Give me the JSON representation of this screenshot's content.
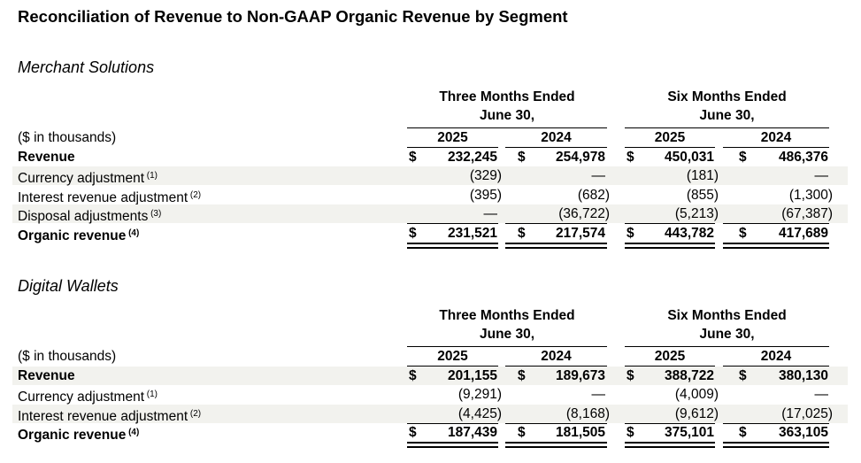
{
  "title": "Reconciliation of Revenue to Non-GAAP Organic Revenue by Segment",
  "sections": [
    {
      "name": "Merchant Solutions",
      "group_headers": [
        [
          "Three Months Ended",
          "June 30,"
        ],
        [
          "Six Months Ended",
          "June 30,"
        ]
      ],
      "unit_label": "($ in thousands)",
      "years": [
        "2025",
        "2024",
        "2025",
        "2024"
      ],
      "rows": [
        {
          "label": "Revenue",
          "note": "",
          "bold": true,
          "shaded": false,
          "dollar": true,
          "values": [
            "232,245",
            "254,978",
            "450,031",
            "486,376"
          ]
        },
        {
          "label": "Currency adjustment",
          "note": "(1)",
          "bold": false,
          "shaded": true,
          "dollar": false,
          "values": [
            "(329)",
            "—",
            "(181)",
            "—"
          ]
        },
        {
          "label": "Interest revenue adjustment",
          "note": "(2)",
          "bold": false,
          "shaded": false,
          "dollar": false,
          "values": [
            "(395)",
            "(682)",
            "(855)",
            "(1,300)"
          ]
        },
        {
          "label": "Disposal adjustments",
          "note": "(3)",
          "bold": false,
          "shaded": true,
          "dollar": false,
          "values": [
            "—",
            "(36,722)",
            "(5,213)",
            "(67,387)"
          ]
        },
        {
          "label": "Organic revenue",
          "note": "(4)",
          "bold": true,
          "shaded": false,
          "dollar": true,
          "total": true,
          "values": [
            "231,521",
            "217,574",
            "443,782",
            "417,689"
          ]
        }
      ]
    },
    {
      "name": "Digital Wallets",
      "group_headers": [
        [
          "Three Months Ended",
          "June 30,"
        ],
        [
          "Six Months Ended",
          "June 30,"
        ]
      ],
      "unit_label": "($ in thousands)",
      "years": [
        "2025",
        "2024",
        "2025",
        "2024"
      ],
      "rows": [
        {
          "label": "Revenue",
          "note": "",
          "bold": true,
          "shaded": true,
          "dollar": true,
          "values": [
            "201,155",
            "189,673",
            "388,722",
            "380,130"
          ]
        },
        {
          "label": "Currency adjustment",
          "note": "(1)",
          "bold": false,
          "shaded": false,
          "dollar": false,
          "values": [
            "(9,291)",
            "—",
            "(4,009)",
            "—"
          ]
        },
        {
          "label": "Interest revenue adjustment",
          "note": "(2)",
          "bold": false,
          "shaded": true,
          "dollar": false,
          "values": [
            "(4,425)",
            "(8,168)",
            "(9,612)",
            "(17,025)"
          ]
        },
        {
          "label": "Organic revenue",
          "note": "(4)",
          "bold": true,
          "shaded": false,
          "dollar": true,
          "total": true,
          "values": [
            "187,439",
            "181,505",
            "375,101",
            "363,105"
          ]
        }
      ]
    }
  ],
  "currency_symbol": "$"
}
